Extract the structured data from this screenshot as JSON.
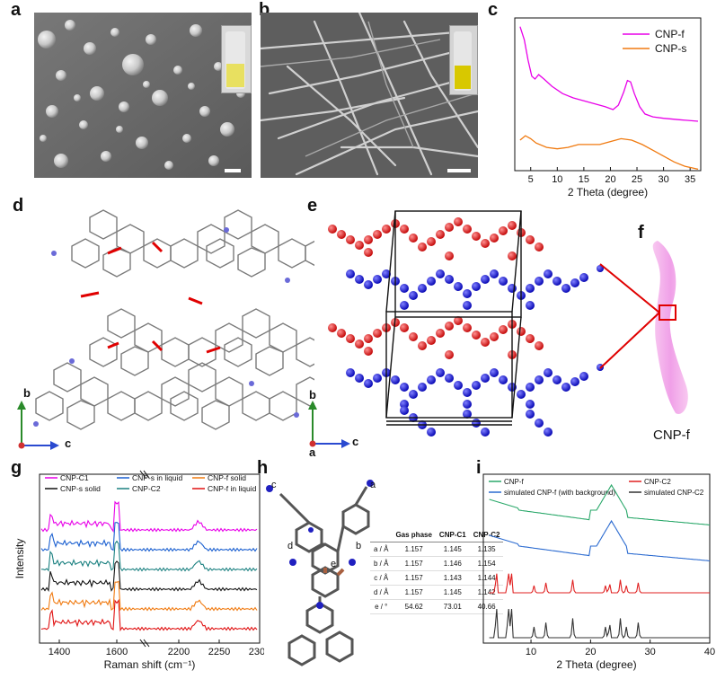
{
  "panels": {
    "a": "a",
    "b": "b",
    "c": "c",
    "d": "d",
    "e": "e",
    "f": "f",
    "g": "g",
    "h": "h",
    "i": "i"
  },
  "axes_labels": {
    "d_b": "b",
    "d_c": "c",
    "e_b": "b",
    "e_c": "c",
    "e_a": "a"
  },
  "panel_f_caption": "CNP-f",
  "panel_h": {
    "atom_labels": {
      "a": "a",
      "b": "b",
      "c": "c",
      "d": "d",
      "e": "e"
    },
    "table": {
      "header": [
        "",
        "Gas phase",
        "CNP-C1",
        "CNP-C2"
      ],
      "rows": [
        [
          "a / Å",
          "1.157",
          "1.145",
          "1.135"
        ],
        [
          "b / Å",
          "1.157",
          "1.146",
          "1.154"
        ],
        [
          "c / Å",
          "1.157",
          "1.143",
          "1.144"
        ],
        [
          "d / Å",
          "1.157",
          "1.145",
          "1.142"
        ],
        [
          "e / °",
          "54.62",
          "73.01",
          "40.66"
        ]
      ]
    }
  },
  "chart_data": [
    {
      "id": "c",
      "type": "line",
      "xlabel": "2 Theta (degree)",
      "xlim": [
        2,
        37
      ],
      "xticks": [
        5,
        10,
        15,
        20,
        25,
        30,
        35
      ],
      "series": [
        {
          "name": "CNP-f",
          "color": "#e800e8",
          "x": [
            3,
            3.8,
            4.5,
            5.2,
            5.8,
            6.5,
            7.5,
            9,
            11,
            13,
            15,
            17,
            19,
            20.5,
            21.5,
            22.5,
            23.2,
            23.8,
            24.5,
            25.5,
            26.5,
            28,
            30,
            33,
            36.5
          ],
          "y": [
            9.9,
            9.0,
            7.6,
            6.5,
            6.3,
            6.6,
            6.3,
            5.8,
            5.3,
            5.0,
            4.8,
            4.6,
            4.4,
            4.2,
            4.5,
            5.4,
            6.2,
            6.1,
            5.3,
            4.4,
            3.9,
            3.7,
            3.6,
            3.5,
            3.4
          ]
        },
        {
          "name": "CNP-s",
          "color": "#f07a10",
          "x": [
            3,
            4,
            5,
            6,
            8,
            10,
            12,
            14,
            16,
            18,
            20,
            22,
            24,
            26,
            28,
            30,
            32,
            34,
            36.5
          ],
          "y": [
            2.1,
            2.4,
            2.2,
            1.9,
            1.6,
            1.5,
            1.6,
            1.8,
            1.8,
            1.8,
            2.0,
            2.2,
            2.1,
            1.8,
            1.4,
            1.0,
            0.6,
            0.3,
            0.1
          ]
        }
      ]
    },
    {
      "id": "g",
      "type": "line",
      "xlabel": "Raman shift (cm⁻¹)",
      "ylabel": "Intensity",
      "xticks_labels": [
        "1400",
        "1600",
        "2200",
        "2250",
        "2300"
      ],
      "series": [
        {
          "name": "CNP-C1",
          "color": "#e800e8"
        },
        {
          "name": "CNP-s in liquid",
          "color": "#1a5fd0"
        },
        {
          "name": "CNP-f solid",
          "color": "#f07a10"
        },
        {
          "name": "CNP-s solid",
          "color": "#111111"
        },
        {
          "name": "CNP-C2",
          "color": "#1a8080"
        },
        {
          "name": "CNP-f in liquid",
          "color": "#e01010"
        }
      ]
    },
    {
      "id": "i",
      "type": "line",
      "xlabel": "2 Theta (degree)",
      "xlim": [
        2,
        40
      ],
      "xticks": [
        10,
        20,
        30,
        40
      ],
      "series": [
        {
          "name": "CNP-f",
          "color": "#2aa86a"
        },
        {
          "name": "CNP-C2",
          "color": "#e02020"
        },
        {
          "name": "simulated CNP-f (with background)",
          "color": "#2a6ad0"
        },
        {
          "name": "simulated CNP-C2",
          "color": "#333333"
        }
      ]
    }
  ]
}
